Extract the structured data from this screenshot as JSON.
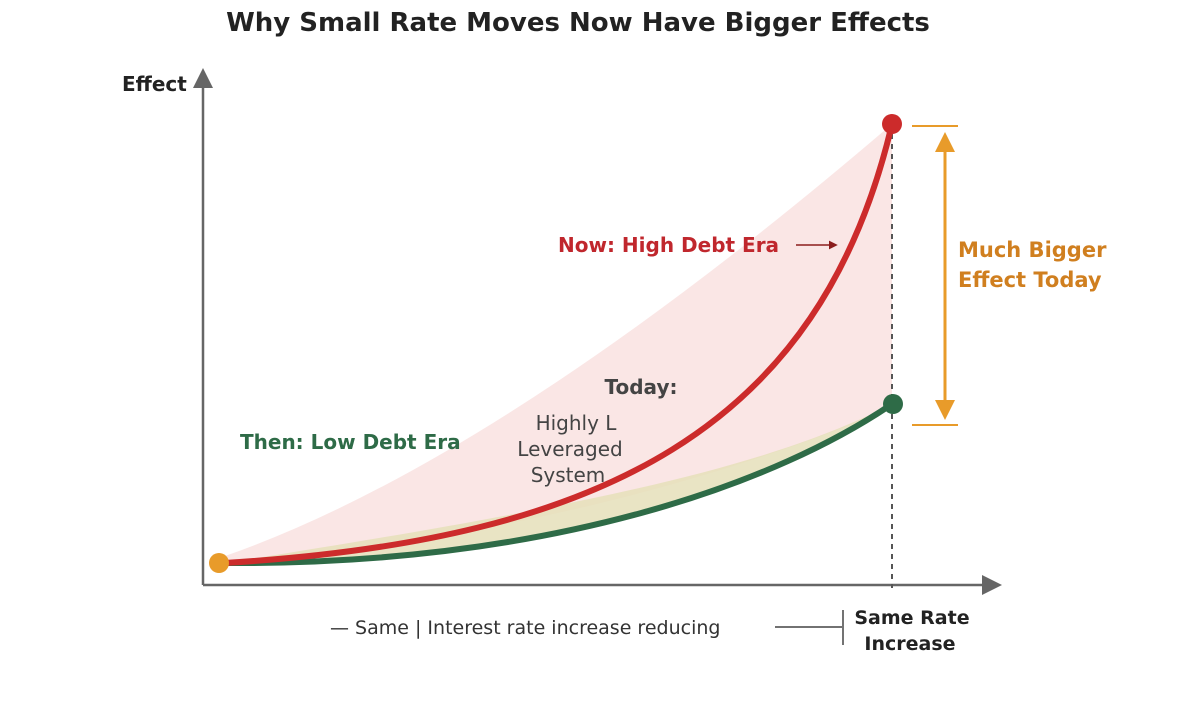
{
  "title": "Why Small Rate Moves Now Have Bigger Effects",
  "y_axis_label": "Effect",
  "x_axis": {
    "caption_left": "— Same | Interest rate increase reducing",
    "marker_label_line1": "Same Rate",
    "marker_label_line2": "Increase"
  },
  "curves": {
    "now": {
      "label": "Now: High Debt Era"
    },
    "then": {
      "label": "Then: Low Debt Era"
    }
  },
  "annotations": {
    "today_heading": "Today:",
    "today_line1": "Highly L",
    "today_line2": "Leveraged",
    "today_line3": "System"
  },
  "difference": {
    "line1": "Much Bigger",
    "line2": "Effect Today"
  },
  "colors": {
    "red": "#cc2b2b",
    "green": "#2e6b47",
    "orange": "#e89b2a",
    "orange_text": "#d07f1f",
    "axis": "#666666"
  }
}
